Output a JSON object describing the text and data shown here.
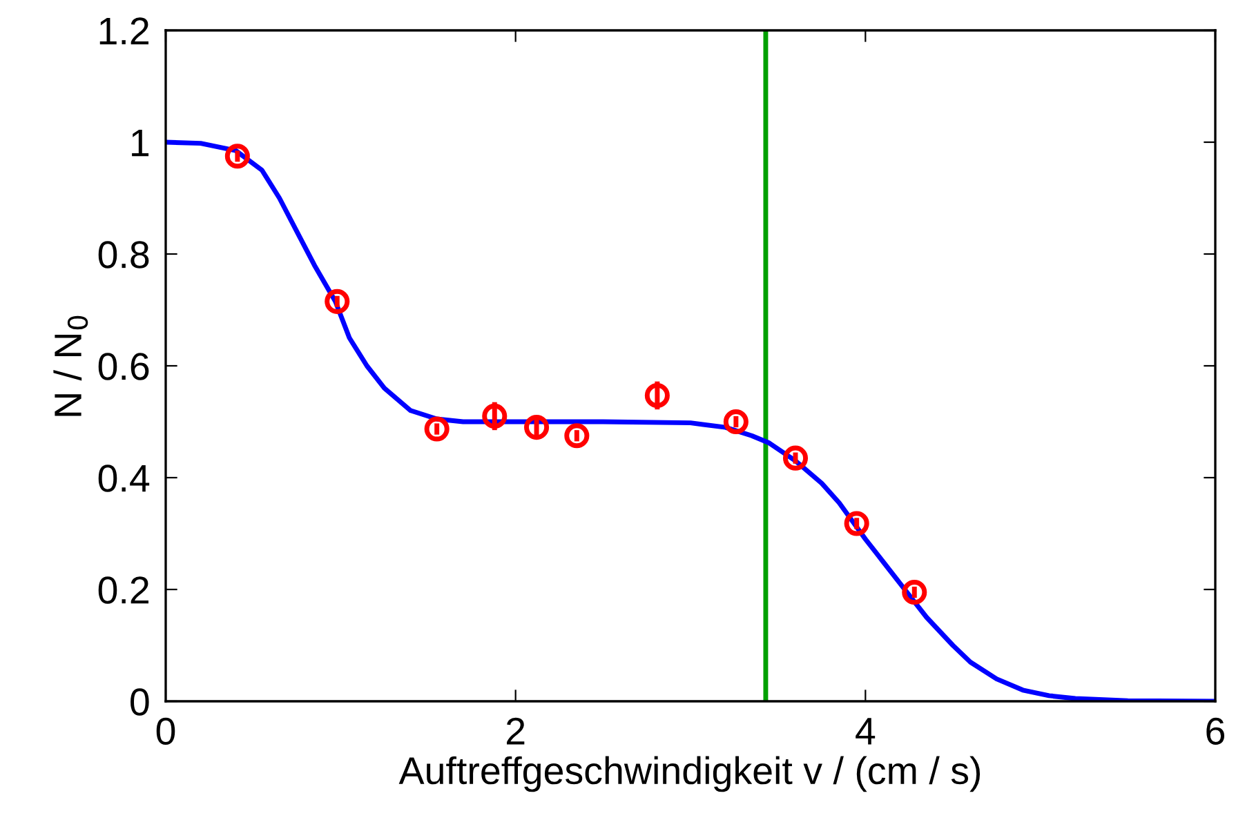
{
  "chart_data": {
    "type": "scatter",
    "xlabel": "Auftreffgeschwindigkeit v / (cm / s)",
    "ylabel": "N / N$_{0}$",
    "xlim": [
      0,
      6
    ],
    "xticks": [
      0,
      2,
      4,
      6
    ],
    "ylim": [
      0,
      1.2
    ],
    "yticks": [
      0,
      0.2,
      0.4,
      0.6,
      0.8,
      1,
      1.2
    ],
    "grid": false,
    "series": [
      {
        "color": "#ff0000",
        "marker": "circle",
        "x": [
          0.41,
          0.98,
          1.55,
          1.88,
          2.12,
          2.35,
          2.81,
          3.26,
          3.6,
          3.95,
          4.28
        ],
        "values": [
          0.975,
          0.715,
          0.487,
          0.51,
          0.49,
          0.475,
          0.547,
          0.5,
          0.435,
          0.318,
          0.195
        ],
        "errors": [
          0.01,
          0.01,
          0.01,
          0.025,
          0.015,
          0.01,
          0.025,
          0.01,
          0.01,
          0.01,
          0.01
        ]
      },
      {
        "type": "line",
        "color": "#0000ff",
        "marker": "none",
        "line_style": "solid",
        "x": [
          0,
          0.2,
          0.4,
          0.55,
          0.65,
          0.75,
          0.85,
          0.97,
          1.05,
          1.15,
          1.25,
          1.4,
          1.55,
          1.7,
          2.0,
          2.5,
          3.0,
          3.2,
          3.35,
          3.45,
          3.6,
          3.75,
          3.85,
          4.0,
          4.1,
          4.25,
          4.35,
          4.5,
          4.6,
          4.75,
          4.9,
          5.05,
          5.2,
          5.5,
          6.0
        ],
        "values": [
          1,
          0.998,
          0.985,
          0.95,
          0.9,
          0.84,
          0.78,
          0.715,
          0.65,
          0.6,
          0.56,
          0.52,
          0.505,
          0.5,
          0.5,
          0.5,
          0.498,
          0.49,
          0.475,
          0.462,
          0.43,
          0.39,
          0.355,
          0.29,
          0.25,
          0.19,
          0.15,
          0.1,
          0.07,
          0.04,
          0.02,
          0.01,
          0.005,
          0.001,
          0
        ]
      }
    ],
    "ref_lines": [
      {
        "axis": "x",
        "value": 3.43,
        "color": "#00a000",
        "line_style": "solid"
      }
    ]
  }
}
